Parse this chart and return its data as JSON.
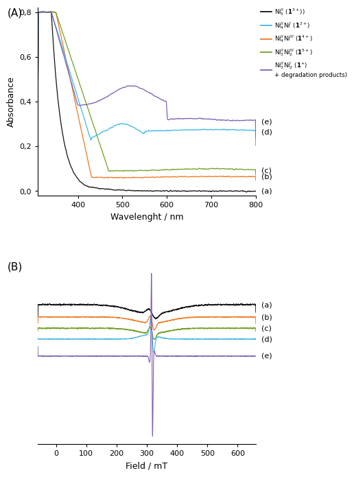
{
  "panel_A_label": "(A)",
  "panel_B_label": "(B)",
  "abs_xlabel": "Wavelenght / nm",
  "abs_ylabel": "Absorbance",
  "epr_xlabel": "Field / mT",
  "abs_xlim": [
    310,
    800
  ],
  "abs_ylim": [
    -0.02,
    0.82
  ],
  "abs_yticks": [
    0.0,
    0.2,
    0.4,
    0.6,
    0.8
  ],
  "abs_yticklabels": [
    "0,0",
    "0,2",
    "0,4",
    "0,6",
    "0,8"
  ],
  "abs_xticks": [
    400,
    500,
    600,
    700,
    800
  ],
  "epr_xlim": [
    -60,
    660
  ],
  "epr_xticks": [
    0,
    100,
    200,
    300,
    400,
    500,
    600
  ],
  "colors": {
    "black": "#111111",
    "cyan": "#3CB8E8",
    "orange": "#F07820",
    "green": "#70A020",
    "purple": "#8060B0"
  },
  "legend_labels": [
    "Ni$^{II}_{5}$ ($\\mathbf{1}^{3+}$))",
    "Ni$^{II}_{4}$Ni$^{I}$ ($\\mathbf{1}^{2+}$)",
    "Ni$^{II}_{4}$Ni$^{III}$ ($\\mathbf{1}^{4+}$)",
    "Ni$^{II}_{3}$Ni$^{III}_{2}$ ($\\mathbf{1}^{5+}$)",
    "Ni$^{II}_{3}$Ni$^{I}_{2}$ ($\\mathbf{1}^{+}$)\n+ degradation products)"
  ],
  "curve_labels_abs": [
    "(a)",
    "(b)",
    "(c)",
    "(d)",
    "(e)"
  ],
  "curve_labels_epr": [
    "(a)",
    "(b)",
    "(c)",
    "(d)",
    "(e)"
  ]
}
